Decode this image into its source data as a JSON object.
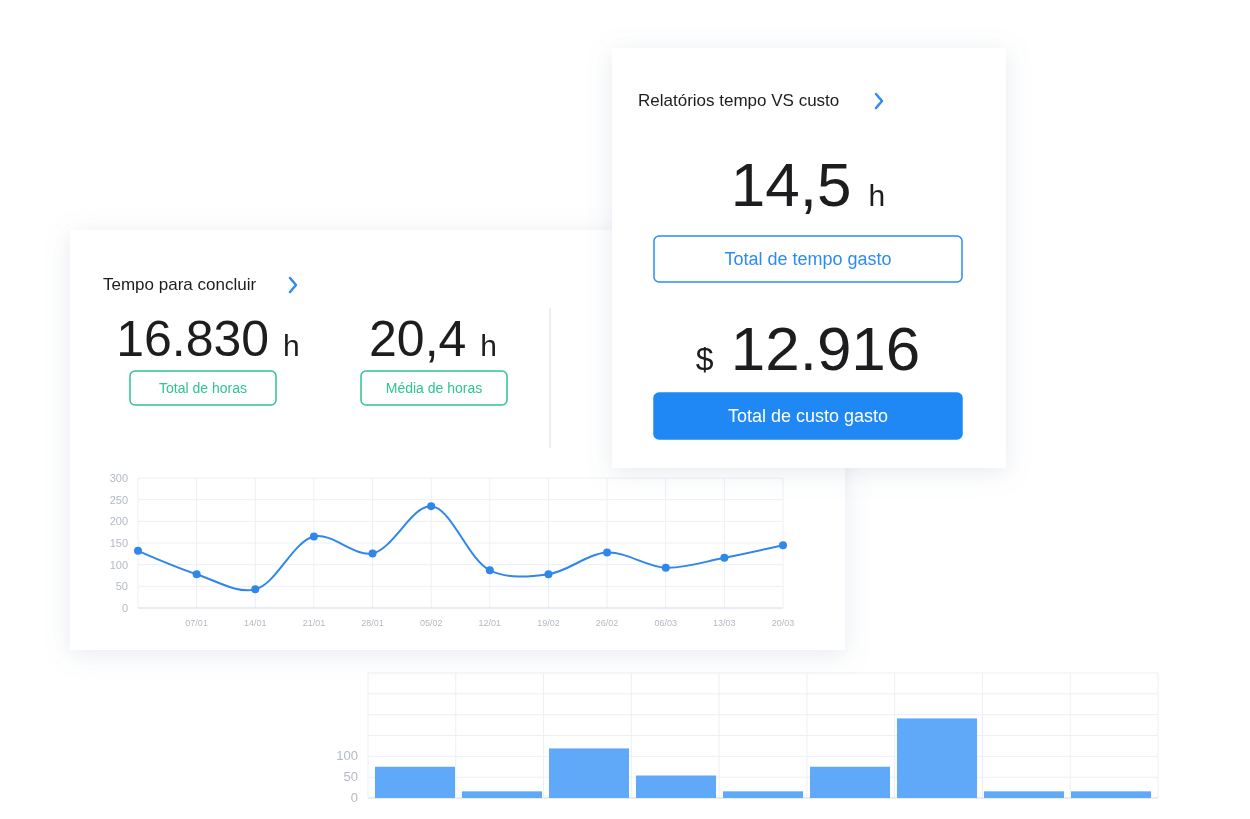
{
  "chart_data": [
    {
      "type": "line",
      "title": "Tempo para concluir",
      "annotations": [
        "16.830 h",
        "Total de horas",
        "20,4 h",
        "Média de horas"
      ],
      "categories": [
        null,
        "07/01",
        "14/01",
        "21/01",
        "28/01",
        "05/02",
        "12/01",
        "19/02",
        "26/02",
        "06/03",
        "13/03",
        "20/03"
      ],
      "values": [
        132,
        78,
        43,
        165,
        126,
        235,
        87,
        78,
        128,
        93,
        116,
        145
      ],
      "color": "#2f86eb",
      "marker": "circle",
      "grid": true,
      "ylim": [
        0,
        300
      ],
      "yticks": [
        0,
        50,
        100,
        150,
        200,
        250,
        300
      ]
    },
    {
      "type": "other",
      "title": "Relatórios tempo VS custo",
      "annotations": [
        "14,5 h",
        "Total de tempo gasto",
        "$ 12.916",
        "Total de custo gasto"
      ]
    },
    {
      "type": "bar",
      "categories": [
        null,
        null,
        null,
        null,
        null,
        null,
        null,
        null,
        null
      ],
      "values": [
        75,
        16,
        119,
        54,
        16,
        75,
        191,
        16,
        16
      ],
      "color": "#60a9f8",
      "grid": true,
      "ylim": [
        0,
        300
      ],
      "yticks": [
        0,
        50,
        100,
        {
          "value": 150,
          "label": null
        },
        {
          "value": 200,
          "label": null
        },
        {
          "value": 250,
          "label": null
        },
        {
          "value": 300,
          "label": null
        }
      ]
    }
  ]
}
